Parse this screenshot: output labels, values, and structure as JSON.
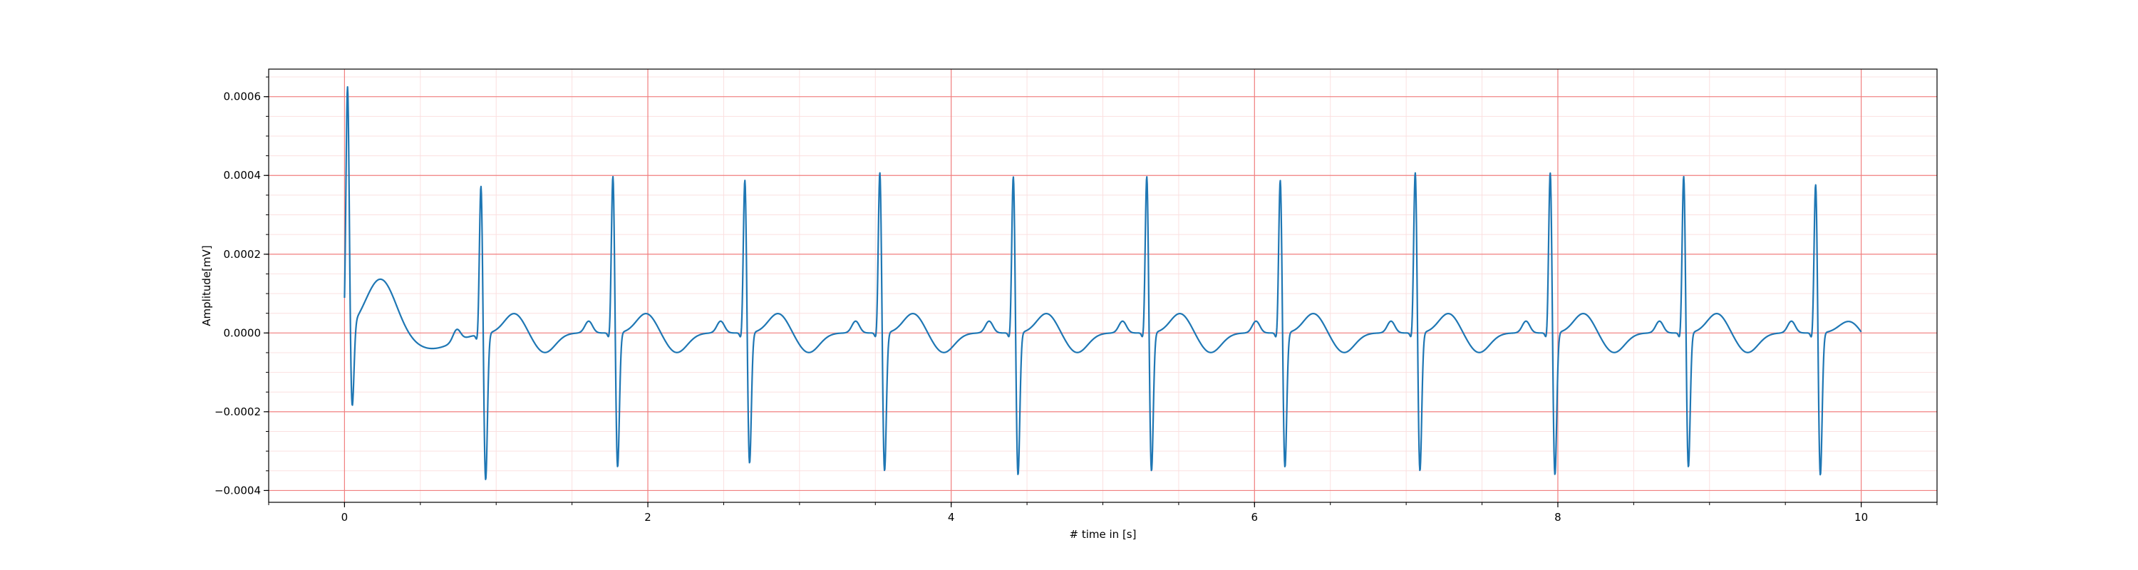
{
  "chart_data": {
    "type": "line",
    "title": "",
    "xlabel": "# time in [s]",
    "ylabel": "Amplitude[mV]",
    "xlim": [
      -0.5,
      10.5
    ],
    "ylim": [
      -0.00043,
      0.00067
    ],
    "x_ticks": [
      0,
      2,
      4,
      6,
      8,
      10
    ],
    "x_tick_labels": [
      "0",
      "2",
      "4",
      "6",
      "8",
      "10"
    ],
    "y_ticks": [
      -0.0004,
      -0.0002,
      0.0,
      0.0002,
      0.0004,
      0.0006
    ],
    "y_tick_labels": [
      "−0.0004",
      "−0.0002",
      "0.0000",
      "0.0002",
      "0.0004",
      "0.0006"
    ],
    "grid": true,
    "grid_major_color": "#f08080",
    "grid_minor_color": "#fbe0e0",
    "line_color": "#1f77b4",
    "beats": [
      {
        "t": 0.02,
        "r": 0.00063,
        "s": -0.00022,
        "p": 0.0,
        "tw": 0.00014
      },
      {
        "t": 0.9,
        "r": 0.0004,
        "s": -0.00038,
        "p": 3e-05,
        "tw": 5e-05
      },
      {
        "t": 1.77,
        "r": 0.00042,
        "s": -0.00035,
        "p": 3e-05,
        "tw": 5e-05
      },
      {
        "t": 2.64,
        "r": 0.00041,
        "s": -0.00034,
        "p": 3e-05,
        "tw": 5e-05
      },
      {
        "t": 3.53,
        "r": 0.00043,
        "s": -0.00036,
        "p": 3e-05,
        "tw": 5e-05
      },
      {
        "t": 4.41,
        "r": 0.00042,
        "s": -0.00037,
        "p": 3e-05,
        "tw": 5e-05
      },
      {
        "t": 5.29,
        "r": 0.00042,
        "s": -0.00036,
        "p": 3e-05,
        "tw": 5e-05
      },
      {
        "t": 6.17,
        "r": 0.00041,
        "s": -0.00035,
        "p": 3e-05,
        "tw": 5e-05
      },
      {
        "t": 7.06,
        "r": 0.00043,
        "s": -0.00036,
        "p": 3e-05,
        "tw": 5e-05
      },
      {
        "t": 7.95,
        "r": 0.00043,
        "s": -0.00037,
        "p": 3e-05,
        "tw": 5e-05
      },
      {
        "t": 8.83,
        "r": 0.00042,
        "s": -0.00035,
        "p": 3e-05,
        "tw": 5e-05
      },
      {
        "t": 9.7,
        "r": 0.0004,
        "s": -0.00037,
        "p": 3e-05,
        "tw": 3e-05
      }
    ],
    "series": [
      {
        "t_start": 0.0,
        "t_end": 10.0
      }
    ]
  }
}
